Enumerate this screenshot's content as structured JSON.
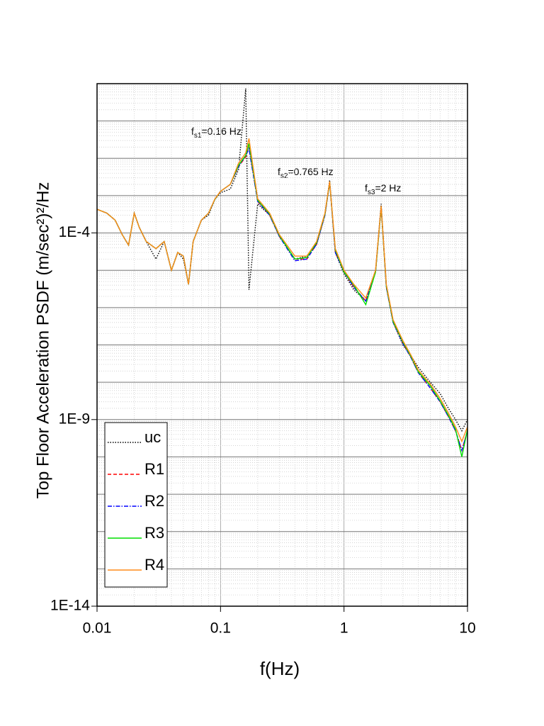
{
  "chart_data": {
    "type": "line",
    "xlabel": "f(Hz)",
    "ylabel": "Top Floor Acceleration PSDF (m/sec²)²/Hz",
    "xscale": "log",
    "yscale": "log",
    "grid": true,
    "legend": "lower left",
    "xlim": [
      0.01,
      10
    ],
    "ylim": [
      1e-14,
      1
    ],
    "xticks": [
      0.01,
      0.1,
      1,
      10
    ],
    "yticks": [
      {
        "value": 0.0001,
        "label": "1E-4"
      },
      {
        "value": 1e-09,
        "label": "1E-9"
      },
      {
        "value": 1e-14,
        "label": "1E-14"
      }
    ],
    "annotations": [
      {
        "f": "f",
        "sub": "s1",
        "text": "=0.16 Hz"
      },
      {
        "f": "f",
        "sub": "s2",
        "text": "=0.765 Hz"
      },
      {
        "f": "f",
        "sub": "s3",
        "text": "=2 Hz"
      }
    ],
    "x": [
      0.01,
      0.012,
      0.014,
      0.016,
      0.018,
      0.02,
      0.022,
      0.025,
      0.03,
      0.035,
      0.04,
      0.045,
      0.05,
      0.055,
      0.06,
      0.07,
      0.08,
      0.09,
      0.1,
      0.12,
      0.14,
      0.16,
      0.17,
      0.2,
      0.25,
      0.3,
      0.4,
      0.5,
      0.6,
      0.7,
      0.765,
      0.85,
      1,
      1.2,
      1.5,
      1.8,
      2,
      2.2,
      2.5,
      3,
      3.5,
      4,
      5,
      6,
      7,
      8,
      9,
      10
    ],
    "series": [
      {
        "name": "uc",
        "color": "#000000",
        "dash": "1.5,2",
        "values": [
          0.00043,
          0.00034,
          0.00022,
          9e-05,
          4.7e-05,
          0.00034,
          0.00014,
          5.9e-05,
          2e-05,
          5.9e-05,
          1e-05,
          3e-05,
          2e-05,
          4.2e-06,
          5.9e-05,
          0.00022,
          0.0003,
          0.0008,
          0.0012,
          0.0015,
          0.005,
          0.74,
          3e-06,
          0.0006,
          0.0003,
          8e-05,
          2e-05,
          2.4e-05,
          5e-05,
          0.0003,
          0.0026,
          3e-05,
          8e-06,
          3e-06,
          1.5e-06,
          1e-05,
          0.0006,
          4e-06,
          4e-07,
          1e-07,
          5e-08,
          2.5e-08,
          1e-08,
          5e-09,
          2e-09,
          1e-09,
          5e-10,
          1e-09
        ]
      },
      {
        "name": "R1",
        "color": "#ff0000",
        "dash": "5,3",
        "values": [
          0.00043,
          0.00034,
          0.00022,
          9e-05,
          4.7e-05,
          0.00034,
          0.00014,
          5.9e-05,
          3.8e-05,
          5.9e-05,
          1e-05,
          3e-05,
          2.4e-05,
          4.2e-06,
          5.9e-05,
          0.00022,
          0.00034,
          0.0008,
          0.0013,
          0.002,
          0.006,
          0.011,
          0.02,
          0.0007,
          0.0003,
          8e-05,
          2e-05,
          2e-05,
          5e-05,
          0.0003,
          0.0022,
          3e-05,
          9e-06,
          3.5e-06,
          1.5e-06,
          9e-06,
          0.0005,
          3.5e-06,
          4e-07,
          1.1e-07,
          4.5e-08,
          1.8e-08,
          7e-09,
          3e-09,
          1.2e-09,
          5e-10,
          1.5e-10,
          5e-10
        ]
      },
      {
        "name": "R2",
        "color": "#0000ff",
        "dash": "6,2,1.5,2",
        "values": [
          0.00043,
          0.00034,
          0.00022,
          9e-05,
          4.7e-05,
          0.00034,
          0.00014,
          5.9e-05,
          3.8e-05,
          5.9e-05,
          1e-05,
          3e-05,
          2.4e-05,
          4.2e-06,
          5.9e-05,
          0.00022,
          0.00034,
          0.0008,
          0.0013,
          0.002,
          0.006,
          0.012,
          0.018,
          0.0007,
          0.0003,
          8e-05,
          1.8e-05,
          2e-05,
          5e-05,
          0.0003,
          0.0023,
          3e-05,
          9e-06,
          3.5e-06,
          1.5e-06,
          9e-06,
          0.0005,
          3.5e-06,
          4e-07,
          1.1e-07,
          4.5e-08,
          1.8e-08,
          7e-09,
          3e-09,
          1.2e-09,
          5e-10,
          1.5e-10,
          5e-10
        ]
      },
      {
        "name": "R3",
        "color": "#00dd00",
        "dash": "",
        "values": [
          0.00043,
          0.00034,
          0.00022,
          9e-05,
          4.7e-05,
          0.00034,
          0.00014,
          5.9e-05,
          3.8e-05,
          5.9e-05,
          1e-05,
          3e-05,
          2.4e-05,
          4.2e-06,
          5.9e-05,
          0.00022,
          0.00034,
          0.0008,
          0.0013,
          0.002,
          0.0065,
          0.012,
          0.025,
          0.00075,
          0.00032,
          8.5e-05,
          2e-05,
          2.2e-05,
          5.5e-05,
          0.00032,
          0.0023,
          3.5e-05,
          9e-06,
          4e-06,
          1.2e-06,
          9e-06,
          0.0005,
          3.8e-06,
          4.2e-07,
          1.2e-07,
          4.8e-08,
          1.9e-08,
          8e-09,
          3.2e-09,
          1.3e-09,
          5.5e-10,
          1e-10,
          5.5e-10
        ]
      },
      {
        "name": "R4",
        "color": "#ff8c1a",
        "dash": "",
        "values": [
          0.00043,
          0.00034,
          0.00022,
          9e-05,
          4.7e-05,
          0.00034,
          0.00014,
          5.9e-05,
          3.8e-05,
          5.9e-05,
          1e-05,
          3e-05,
          2.4e-05,
          4.2e-06,
          5.9e-05,
          0.00022,
          0.00034,
          0.00082,
          0.0013,
          0.002,
          0.0074,
          0.014,
          0.034,
          0.00082,
          0.00034,
          9e-05,
          2.4e-05,
          2.4e-05,
          5.9e-05,
          0.00034,
          0.0024,
          3.8e-05,
          1e-05,
          4.2e-06,
          1.8e-06,
          1e-05,
          0.00053,
          4.2e-06,
          4.7e-07,
          1.3e-07,
          5.2e-08,
          2.1e-08,
          8.9e-09,
          3.7e-09,
          1.5e-09,
          6.4e-10,
          2.6e-10,
          6.4e-10
        ]
      }
    ]
  }
}
